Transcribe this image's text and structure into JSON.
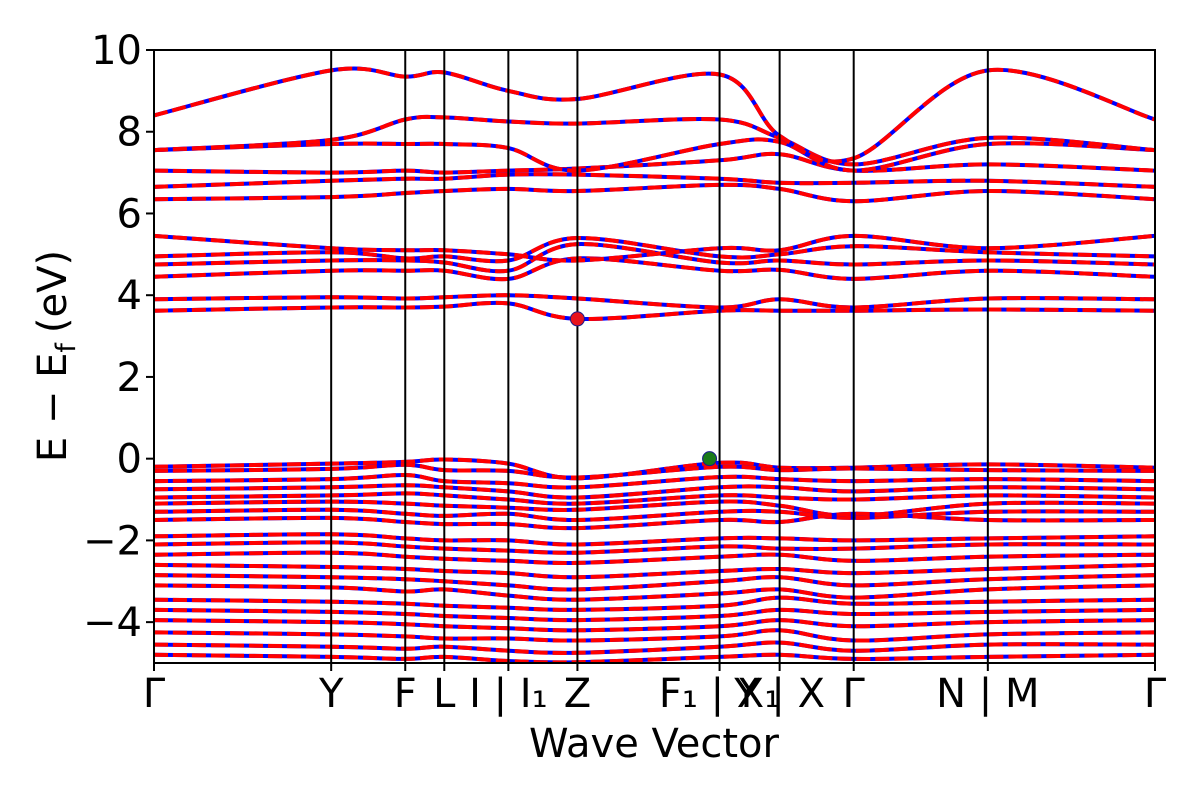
{
  "chart_data": {
    "type": "line",
    "title": "",
    "xlabel": "Wave Vector",
    "ylabel": "E − E",
    "ylabel_sub": "f",
    "ylabel_unit": "(eV)",
    "ylim": [
      -5,
      10
    ],
    "yticks": [
      10,
      8,
      6,
      4,
      2,
      0,
      -2,
      -4
    ],
    "ytick_labels": [
      "10",
      "8",
      "6",
      "4",
      "2",
      "0",
      "−2",
      "−4"
    ],
    "xlim": [
      0,
      10.0
    ],
    "grid": false,
    "legend": "none",
    "kpoints": [
      {
        "label": "Γ",
        "x": 0.0
      },
      {
        "label": "Y",
        "x": 1.77
      },
      {
        "label": "F",
        "x": 2.51
      },
      {
        "label": "L",
        "x": 2.9
      },
      {
        "label": "I | I₁",
        "x": 3.54
      },
      {
        "label": "Z",
        "x": 4.23
      },
      {
        "label": "F₁ | X₁",
        "x": 5.65
      },
      {
        "label": "Y | X",
        "x": 6.25
      },
      {
        "label": "Γ",
        "x": 6.99
      },
      {
        "label": "N | M",
        "x": 8.33
      },
      {
        "label": "Γ",
        "x": 10.0
      }
    ],
    "series_styles": [
      {
        "name": "spin-up",
        "color": "#0000ff",
        "dash": "none"
      },
      {
        "name": "spin-down",
        "color": "#ff0000",
        "dash": "dashed"
      }
    ],
    "valence_bands": [
      [
        -0.2,
        -0.12,
        -0.08,
        -0.02,
        -0.12,
        -0.48,
        -0.1,
        -0.22,
        -0.22,
        -0.14,
        -0.22
      ],
      [
        -0.3,
        -0.25,
        -0.15,
        -0.28,
        -0.3,
        -0.46,
        -0.2,
        -0.28,
        -0.24,
        -0.28,
        -0.3
      ],
      [
        -0.55,
        -0.5,
        -0.4,
        -0.55,
        -0.6,
        -0.7,
        -0.45,
        -0.5,
        -0.55,
        -0.5,
        -0.55
      ],
      [
        -0.75,
        -0.7,
        -0.65,
        -0.7,
        -0.8,
        -0.95,
        -0.7,
        -0.7,
        -0.8,
        -0.7,
        -0.75
      ],
      [
        -0.95,
        -0.9,
        -0.85,
        -0.9,
        -1.0,
        -1.1,
        -0.9,
        -0.95,
        -1.0,
        -0.9,
        -0.95
      ],
      [
        -1.1,
        -1.05,
        -1.1,
        -1.15,
        -1.2,
        -1.25,
        -1.05,
        -1.15,
        -1.4,
        -1.1,
        -1.1
      ],
      [
        -1.3,
        -1.25,
        -1.35,
        -1.4,
        -1.35,
        -1.5,
        -1.3,
        -1.3,
        -1.45,
        -1.3,
        -1.3
      ],
      [
        -1.5,
        -1.45,
        -1.55,
        -1.6,
        -1.6,
        -1.7,
        -1.5,
        -1.55,
        -1.35,
        -1.5,
        -1.5
      ],
      [
        -1.9,
        -1.85,
        -1.95,
        -2.0,
        -2.0,
        -2.1,
        -1.95,
        -1.95,
        -2.0,
        -1.95,
        -1.9
      ],
      [
        -2.1,
        -2.05,
        -2.15,
        -2.2,
        -2.25,
        -2.3,
        -2.15,
        -2.2,
        -2.2,
        -2.1,
        -2.1
      ],
      [
        -2.35,
        -2.3,
        -2.4,
        -2.45,
        -2.5,
        -2.55,
        -2.4,
        -2.35,
        -2.5,
        -2.4,
        -2.35
      ],
      [
        -2.6,
        -2.65,
        -2.7,
        -2.75,
        -2.8,
        -2.9,
        -2.75,
        -2.7,
        -2.8,
        -2.7,
        -2.6
      ],
      [
        -2.85,
        -2.9,
        -2.95,
        -3.0,
        -3.1,
        -3.2,
        -3.0,
        -2.9,
        -3.1,
        -2.95,
        -2.85
      ],
      [
        -3.1,
        -3.15,
        -3.25,
        -3.2,
        -3.35,
        -3.45,
        -3.3,
        -3.2,
        -3.4,
        -3.2,
        -3.1
      ],
      [
        -3.45,
        -3.5,
        -3.55,
        -3.6,
        -3.65,
        -3.7,
        -3.6,
        -3.4,
        -3.55,
        -3.5,
        -3.45
      ],
      [
        -3.7,
        -3.75,
        -3.8,
        -3.85,
        -3.9,
        -3.95,
        -3.85,
        -3.7,
        -3.8,
        -3.75,
        -3.7
      ],
      [
        -3.95,
        -4.0,
        -4.05,
        -4.1,
        -4.15,
        -4.2,
        -4.1,
        -3.95,
        -4.1,
        -4.0,
        -3.95
      ],
      [
        -4.25,
        -4.3,
        -4.35,
        -4.4,
        -4.4,
        -4.45,
        -4.35,
        -4.2,
        -4.45,
        -4.3,
        -4.25
      ],
      [
        -4.55,
        -4.6,
        -4.65,
        -4.6,
        -4.7,
        -4.75,
        -4.6,
        -4.5,
        -4.7,
        -4.55,
        -4.55
      ],
      [
        -4.8,
        -4.85,
        -4.9,
        -4.85,
        -4.95,
        -4.98,
        -4.85,
        -4.8,
        -4.9,
        -4.85,
        -4.8
      ]
    ],
    "conduction_bands": [
      [
        3.62,
        3.7,
        3.7,
        3.72,
        3.8,
        3.42,
        3.62,
        3.62,
        3.62,
        3.65,
        3.62
      ],
      [
        3.9,
        3.95,
        3.92,
        3.95,
        4.0,
        3.92,
        3.7,
        3.9,
        3.7,
        3.92,
        3.9
      ],
      [
        4.45,
        4.6,
        4.6,
        4.6,
        4.4,
        4.9,
        4.6,
        4.62,
        4.4,
        4.6,
        4.45
      ],
      [
        4.75,
        4.85,
        4.85,
        4.8,
        4.6,
        5.25,
        4.8,
        4.85,
        4.75,
        4.85,
        4.75
      ],
      [
        4.95,
        5.05,
        4.9,
        4.95,
        4.85,
        5.4,
        4.95,
        5.0,
        5.2,
        5.05,
        4.95
      ],
      [
        5.45,
        5.15,
        5.1,
        5.1,
        5.0,
        4.85,
        5.15,
        5.1,
        5.45,
        5.15,
        5.45
      ],
      [
        6.35,
        6.4,
        6.5,
        6.55,
        6.6,
        6.55,
        6.7,
        6.6,
        6.3,
        6.55,
        6.35
      ],
      [
        6.65,
        6.8,
        6.85,
        6.85,
        6.95,
        6.95,
        6.85,
        6.75,
        6.75,
        6.8,
        6.65
      ],
      [
        7.05,
        7.0,
        7.05,
        7.0,
        7.05,
        7.1,
        7.3,
        7.45,
        7.05,
        7.2,
        7.05
      ],
      [
        7.55,
        7.7,
        7.7,
        7.7,
        7.6,
        7.05,
        7.7,
        7.75,
        7.05,
        7.7,
        7.55
      ],
      [
        7.55,
        7.8,
        8.3,
        8.35,
        8.25,
        8.2,
        8.3,
        7.85,
        7.2,
        7.85,
        7.55
      ],
      [
        8.4,
        9.5,
        9.35,
        9.45,
        9.0,
        8.8,
        9.4,
        7.9,
        7.35,
        9.5,
        8.3
      ]
    ],
    "markers": [
      {
        "label": "CBM",
        "x": 4.23,
        "y": 3.42,
        "color": "#e8141c"
      },
      {
        "label": "VBM",
        "x": 5.55,
        "y": 0.0,
        "color": "#1a7a1a"
      }
    ]
  }
}
